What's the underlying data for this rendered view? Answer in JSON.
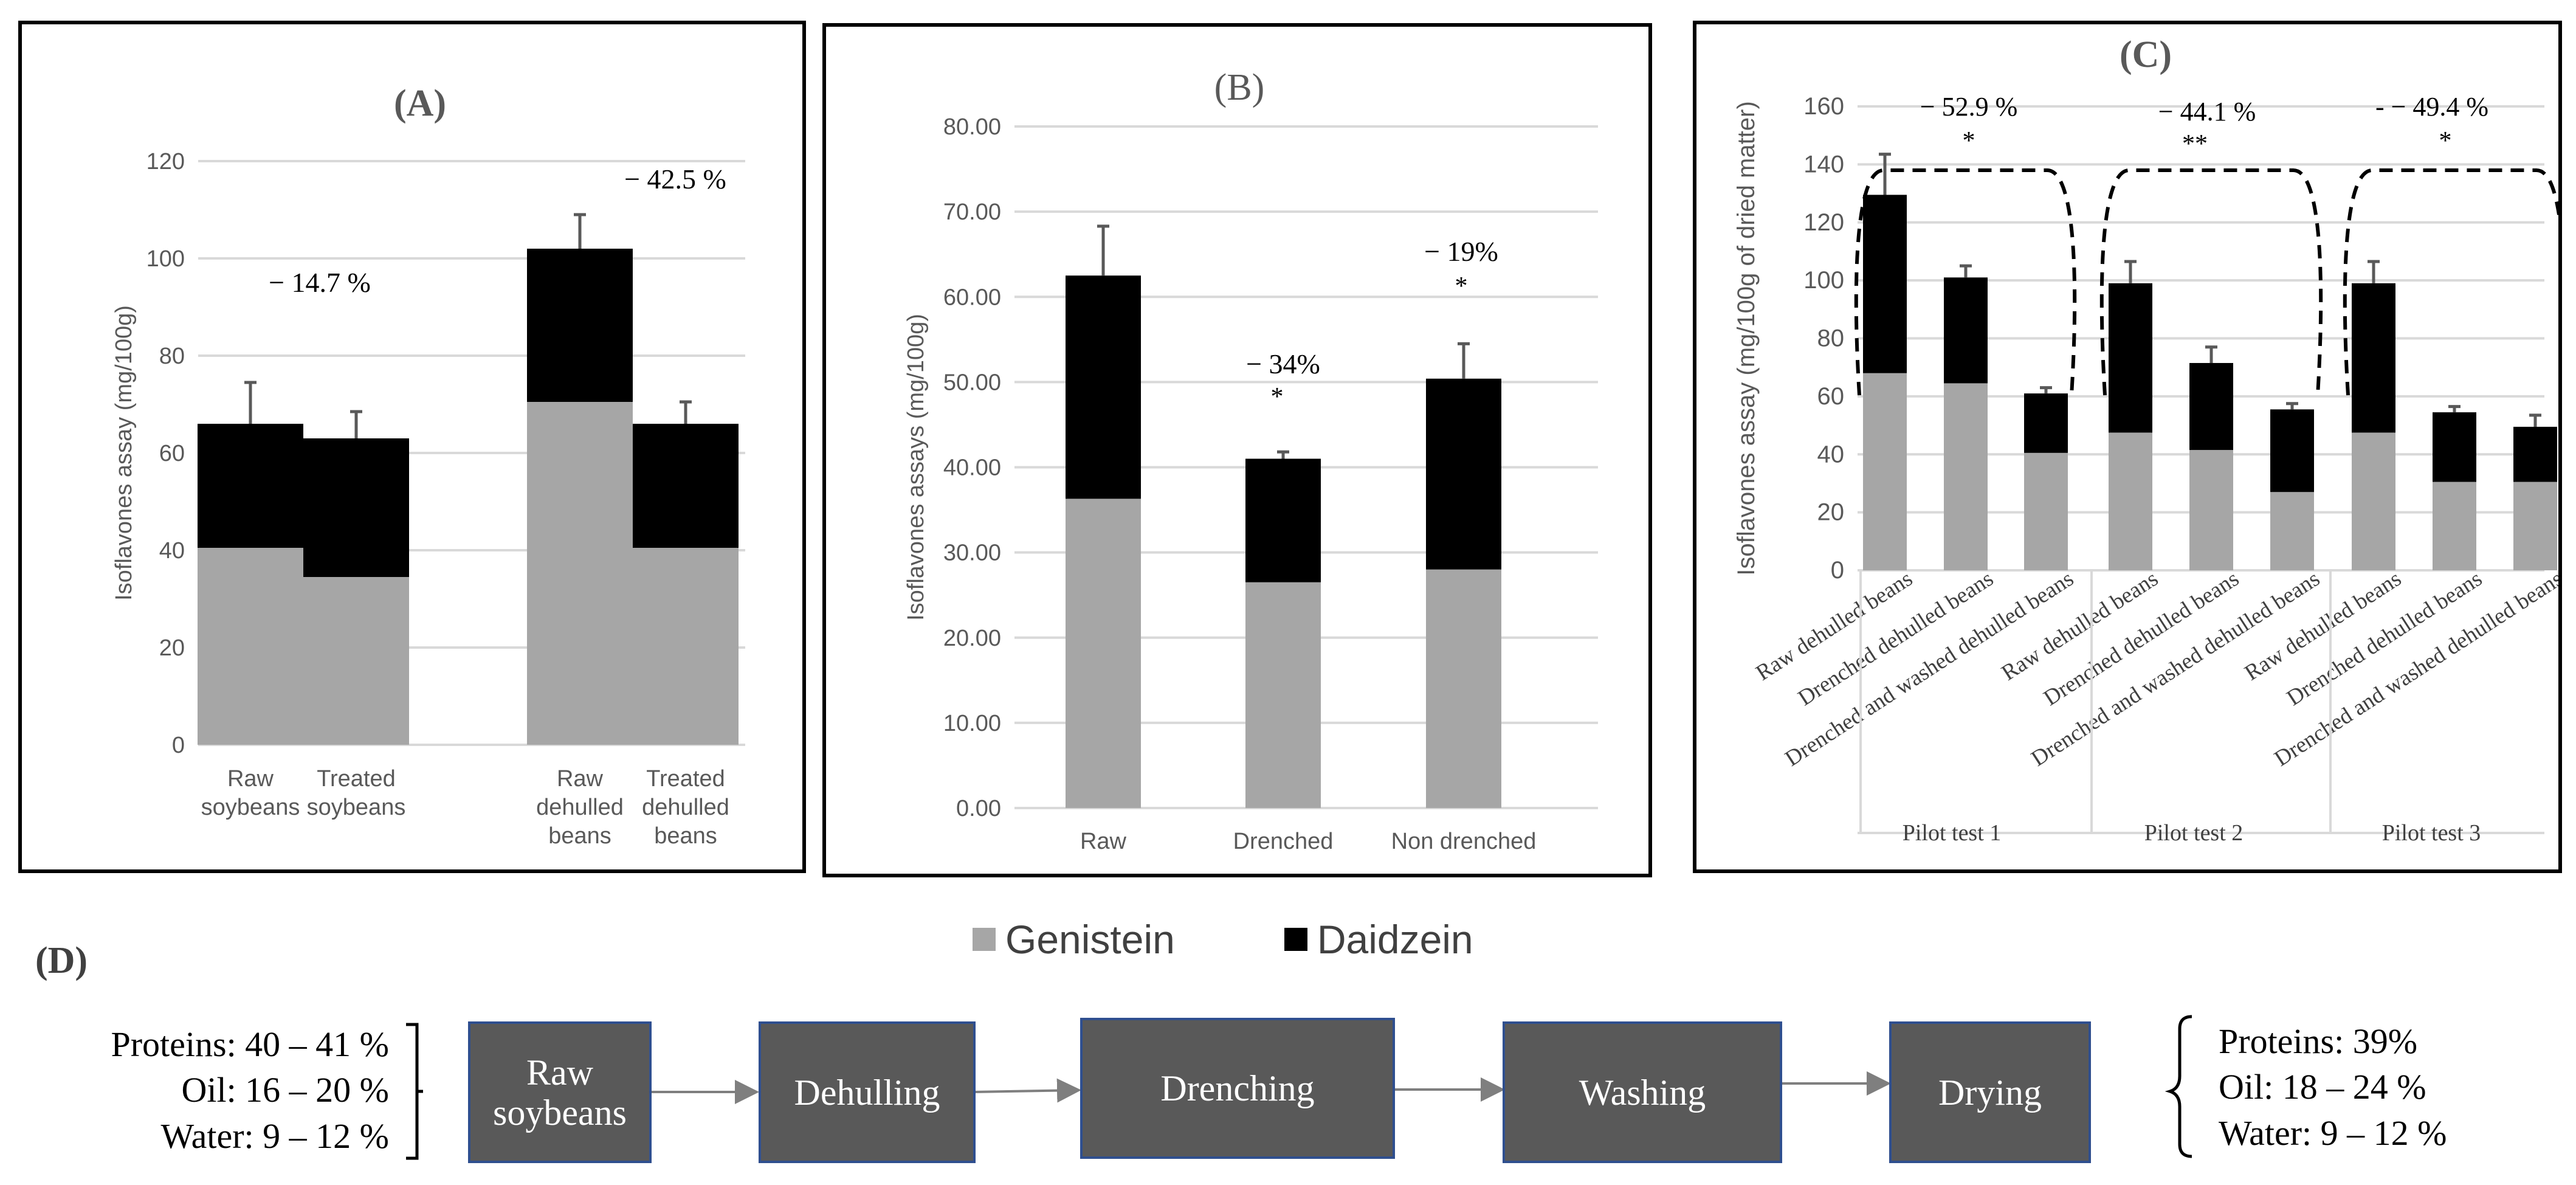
{
  "colors": {
    "genistein": "#a6a6a6",
    "daidzein": "#000000",
    "grid": "#d9d9d9",
    "axis_text": "#595959"
  },
  "legend": {
    "genistein": "Genistein",
    "daidzein": "Daidzein"
  },
  "chart_data": [
    {
      "type": "bar",
      "stacked": true,
      "panel": "A",
      "title": "(A)",
      "ylabel": "Isoflavones assay (mg/100g)",
      "ylim": [
        0,
        120
      ],
      "yticks": [
        "0",
        "20",
        "40",
        "60",
        "80",
        "100",
        "120"
      ],
      "categories": [
        [
          "Raw",
          "soybeans"
        ],
        [
          "Treated",
          "soybeans"
        ],
        [
          "Raw",
          "dehulled",
          "beans"
        ],
        [
          "Treated",
          "dehulled",
          "beans"
        ]
      ],
      "series": [
        {
          "name": "Genistein",
          "values": [
            40.5,
            34.5,
            70.5,
            40.5
          ]
        },
        {
          "name": "Daidzein",
          "values": [
            25.5,
            28.5,
            31.5,
            25.5
          ]
        }
      ],
      "errors": [
        8.5,
        5.5,
        7,
        4.5
      ],
      "annotations": [
        "− 14.7 %",
        "− 42.5 %"
      ]
    },
    {
      "type": "bar",
      "stacked": true,
      "panel": "B",
      "title": "(B)",
      "ylabel": "Isoflavones assays (mg/100g)",
      "ylim": [
        0,
        80
      ],
      "yticks": [
        "0.00",
        "10.00",
        "20.00",
        "30.00",
        "40.00",
        "50.00",
        "60.00",
        "70.00",
        "80.00"
      ],
      "categories": [
        "Raw",
        "Drenched",
        "Non drenched"
      ],
      "series": [
        {
          "name": "Genistein",
          "values": [
            36.3,
            26.5,
            28
          ]
        },
        {
          "name": "Daidzein",
          "values": [
            26.2,
            14.5,
            22.4
          ]
        }
      ],
      "errors": [
        5.8,
        0.8,
        4.1
      ],
      "annotations": [
        "− 34%",
        "*",
        "− 19%",
        "*"
      ]
    },
    {
      "type": "bar",
      "stacked": true,
      "panel": "C",
      "title": "(C)",
      "ylabel": "Isoflavones assay  (mg/100g  of dried matter)",
      "ylim": [
        0,
        160
      ],
      "yticks": [
        "0",
        "20",
        "40",
        "60",
        "80",
        "100",
        "120",
        "140",
        "160"
      ],
      "categories": [
        "Raw dehulled beans",
        "Drenched dehulled beans",
        "Drenched and washed dehulled beans",
        "Raw dehulled beans",
        "Drenched dehulled beans",
        "Drenched and washed dehulled beans",
        "Raw dehulled beans",
        "Drenched dehulled beans",
        "Drenched and washed dehulled beans"
      ],
      "groups": [
        "Pilot test 1",
        "Pilot test 2",
        "Pilot test 3"
      ],
      "series": [
        {
          "name": "Genistein",
          "values": [
            68,
            64.5,
            40.5,
            47.5,
            41.5,
            27,
            47.5,
            30.5,
            30.5
          ]
        },
        {
          "name": "Daidzein",
          "values": [
            61.5,
            36.5,
            20.5,
            51.5,
            30,
            28.5,
            51.5,
            24,
            19
          ]
        }
      ],
      "errors": [
        14,
        4,
        2,
        7.5,
        5.5,
        2,
        7.5,
        2,
        4
      ],
      "annotations": [
        "− 52.9 %",
        "*",
        "− 44.1 %",
        "**",
        "- − 49.4 %",
        "*"
      ]
    }
  ],
  "process": {
    "title": "(D)",
    "input": [
      "Proteins: 40 – 41 %",
      "Oil: 16 – 20 %",
      "Water: 9 – 12 %"
    ],
    "steps": [
      "Raw soybeans",
      "Dehulling",
      "Drenching",
      "Washing",
      "Drying"
    ],
    "output": [
      "Proteins: 39%",
      "Oil: 18 – 24 %",
      "Water: 9 – 12 %"
    ]
  }
}
